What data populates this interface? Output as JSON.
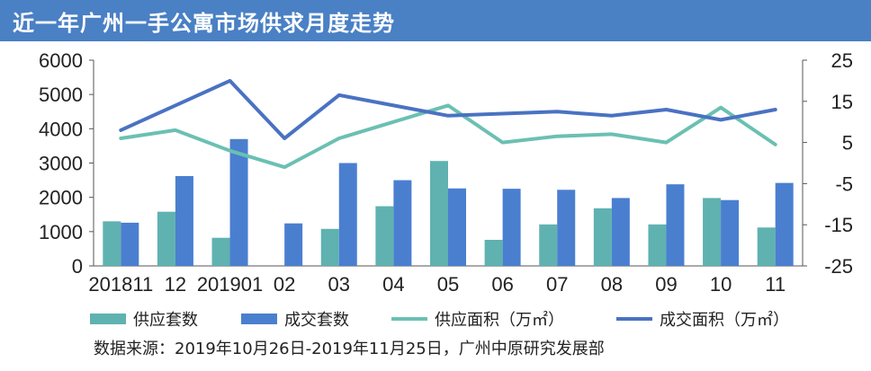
{
  "title": "近一年广州一手公寓市场供求月度走势",
  "source": "数据来源：2019年10月26日-2019年11月25日，广州中原研究发展部",
  "colors": {
    "header": "#4a80c4",
    "supply_bar": "#5fb2b0",
    "deal_bar": "#4a7fd0",
    "supply_line": "#6bc0b2",
    "deal_line": "#4a72c2"
  },
  "chart_data": {
    "type": "bar",
    "categories": [
      "201811",
      "12",
      "201901",
      "02",
      "03",
      "04",
      "05",
      "06",
      "07",
      "08",
      "09",
      "10",
      "11"
    ],
    "y_left": {
      "ylim": [
        0,
        6000
      ],
      "ticks": [
        0,
        1000,
        2000,
        3000,
        4000,
        5000,
        6000
      ]
    },
    "y_right": {
      "ylim": [
        -25,
        25
      ],
      "ticks": [
        -25,
        -15,
        -5,
        5,
        15,
        25
      ]
    },
    "series": [
      {
        "name": "供应套数",
        "type": "bar",
        "axis": "left",
        "color": "#5fb2b0",
        "values": [
          1300,
          1580,
          820,
          0,
          1080,
          1740,
          3060,
          760,
          1210,
          1680,
          1210,
          1980,
          1120
        ]
      },
      {
        "name": "成交套数",
        "type": "bar",
        "axis": "left",
        "color": "#4a7fd0",
        "values": [
          1260,
          2620,
          3700,
          1240,
          3000,
          2500,
          2260,
          2250,
          2220,
          1980,
          2380,
          1920,
          2420
        ]
      },
      {
        "name": "供应面积（万㎡）",
        "type": "line",
        "axis": "right",
        "color": "#6bc0b2",
        "values": [
          6,
          8,
          3,
          -1,
          6,
          10,
          14,
          5,
          6.5,
          7,
          5,
          13.5,
          4.5
        ]
      },
      {
        "name": "成交面积（万㎡）",
        "type": "line",
        "axis": "right",
        "color": "#4a72c2",
        "values": [
          8,
          14,
          20,
          6,
          16.5,
          14,
          11.5,
          12,
          12.5,
          11.5,
          13,
          10.5,
          13
        ]
      }
    ],
    "legend_position": "bottom",
    "grid": false
  }
}
